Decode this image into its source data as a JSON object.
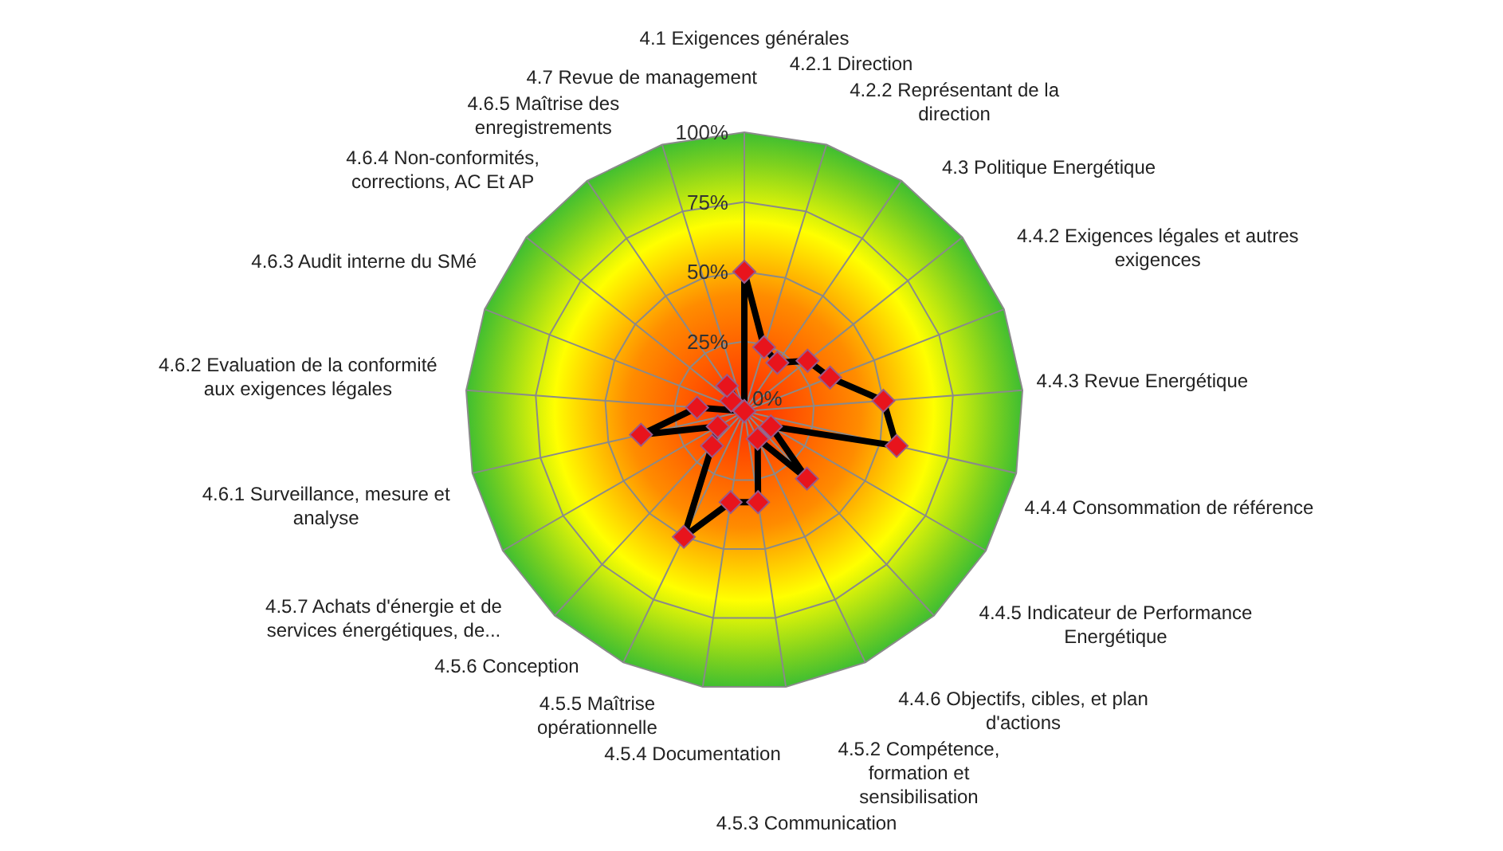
{
  "chart_data": {
    "type": "radar",
    "categories": [
      "4.1 Exigences générales",
      "4.2.1 Direction",
      "4.2.2 Représentant de la direction",
      "4.3 Politique Energétique",
      "4.4.2 Exigences légales et autres exigences",
      "4.4.3 Revue Energétique",
      "4.4.4 Consommation de référence",
      "4.4.5 Indicateur de Performance Energétique",
      "4.4.6 Objectifs, cibles, et plan d'actions",
      "4.5.2 Compétence, formation et sensibilisation",
      "4.5.3 Communication",
      "4.5.4 Documentation",
      "4.5.5 Maîtrise opérationnelle",
      "4.5.6 Conception",
      "4.5.7 Achats d'énergie et de services énergétiques, de...",
      "4.6.1 Surveillance, mesure et analyse",
      "4.6.2 Evaluation de la conformité aux exigences légales",
      "4.6.3 Audit interne du SMé",
      "4.6.4 Non-conformités, corrections, AC Et AP",
      "4.6.5 Maîtrise des enregistrements",
      "4.7 Revue de management"
    ],
    "series": [
      {
        "color": "#000000",
        "values": [
          50,
          24,
          21,
          29,
          33,
          50,
          56,
          11,
          33,
          11,
          33,
          33,
          50,
          17,
          11,
          38,
          17,
          0,
          6,
          11,
          0
        ]
      }
    ],
    "ylim": [
      0,
      100
    ],
    "yticks": [
      {
        "value": 0,
        "label": "0%"
      },
      {
        "value": 25,
        "label": "25%"
      },
      {
        "value": 50,
        "label": "50%"
      },
      {
        "value": 75,
        "label": "75%"
      },
      {
        "value": 100,
        "label": "100%"
      }
    ],
    "grid": true,
    "marker": "diamond"
  }
}
